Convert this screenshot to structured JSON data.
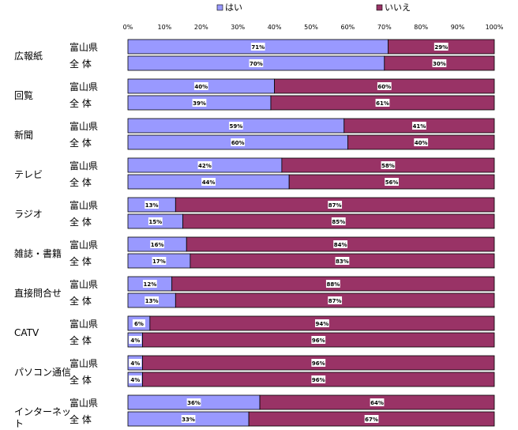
{
  "chart_data": {
    "type": "bar",
    "orientation": "horizontal",
    "stacked": true,
    "percent": true,
    "xlim": [
      0,
      100
    ],
    "x_ticks": [
      "0%",
      "10%",
      "20%",
      "30%",
      "40%",
      "50%",
      "60%",
      "70%",
      "80%",
      "90%",
      "100%"
    ],
    "legend_position": "top",
    "series": [
      {
        "name": "はい",
        "color": "#9999ff"
      },
      {
        "name": "いいえ",
        "color": "#993366"
      }
    ],
    "groups": [
      {
        "label": "広報紙",
        "rows": [
          {
            "label": "富山県",
            "values": [
              71,
              29
            ],
            "labels": [
              "71%",
              "29%"
            ]
          },
          {
            "label": "全 体",
            "values": [
              70,
              30
            ],
            "labels": [
              "70%",
              "30%"
            ]
          }
        ]
      },
      {
        "label": "回覧",
        "rows": [
          {
            "label": "富山県",
            "values": [
              40,
              60
            ],
            "labels": [
              "40%",
              "60%"
            ]
          },
          {
            "label": "全 体",
            "values": [
              39,
              61
            ],
            "labels": [
              "39%",
              "61%"
            ]
          }
        ]
      },
      {
        "label": "新聞",
        "rows": [
          {
            "label": "富山県",
            "values": [
              59,
              41
            ],
            "labels": [
              "59%",
              "41%"
            ]
          },
          {
            "label": "全 体",
            "values": [
              60,
              40
            ],
            "labels": [
              "60%",
              "40%"
            ]
          }
        ]
      },
      {
        "label": "テレビ",
        "rows": [
          {
            "label": "富山県",
            "values": [
              42,
              58
            ],
            "labels": [
              "42%",
              "58%"
            ]
          },
          {
            "label": "全 体",
            "values": [
              44,
              56
            ],
            "labels": [
              "44%",
              "56%"
            ]
          }
        ]
      },
      {
        "label": "ラジオ",
        "rows": [
          {
            "label": "富山県",
            "values": [
              13,
              87
            ],
            "labels": [
              "13%",
              "87%"
            ]
          },
          {
            "label": "全 体",
            "values": [
              15,
              85
            ],
            "labels": [
              "15%",
              "85%"
            ]
          }
        ]
      },
      {
        "label": "雑誌・書籍",
        "rows": [
          {
            "label": "富山県",
            "values": [
              16,
              84
            ],
            "labels": [
              "16%",
              "84%"
            ]
          },
          {
            "label": "全 体",
            "values": [
              17,
              83
            ],
            "labels": [
              "17%",
              "83%"
            ]
          }
        ]
      },
      {
        "label": "直接問合せ",
        "rows": [
          {
            "label": "富山県",
            "values": [
              12,
              88
            ],
            "labels": [
              "12%",
              "88%"
            ]
          },
          {
            "label": "全 体",
            "values": [
              13,
              87
            ],
            "labels": [
              "13%",
              "87%"
            ]
          }
        ]
      },
      {
        "label": "CATV",
        "rows": [
          {
            "label": "富山県",
            "values": [
              6,
              94
            ],
            "labels": [
              "6%",
              "94%"
            ]
          },
          {
            "label": "全 体",
            "values": [
              4,
              96
            ],
            "labels": [
              "4%",
              "96%"
            ]
          }
        ]
      },
      {
        "label": "パソコン通信",
        "rows": [
          {
            "label": "富山県",
            "values": [
              4,
              96
            ],
            "labels": [
              "4%",
              "96%"
            ]
          },
          {
            "label": "全 体",
            "values": [
              4,
              96
            ],
            "labels": [
              "4%",
              "96%"
            ]
          }
        ]
      },
      {
        "label": "インターネット",
        "rows": [
          {
            "label": "富山県",
            "values": [
              36,
              64
            ],
            "labels": [
              "36%",
              "64%"
            ]
          },
          {
            "label": "全 体",
            "values": [
              33,
              67
            ],
            "labels": [
              "33%",
              "67%"
            ]
          }
        ]
      }
    ]
  }
}
